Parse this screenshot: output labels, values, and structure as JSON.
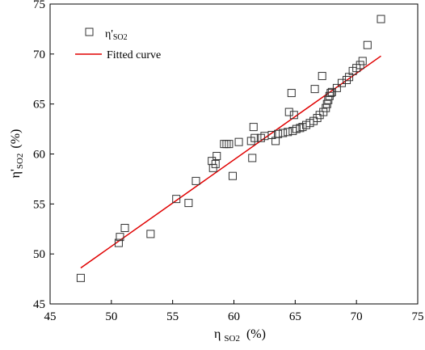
{
  "chart_data": {
    "type": "scatter",
    "title": "",
    "xlabel": {
      "main": "η",
      "sub": "SO2",
      "unit": "(%)"
    },
    "ylabel": {
      "main": "η'",
      "sub": "SO2",
      "unit": "(%)"
    },
    "xlim": [
      45,
      75
    ],
    "ylim": [
      45,
      75
    ],
    "xticks": [
      "45",
      "50",
      "55",
      "60",
      "65",
      "70",
      "75"
    ],
    "yticks": [
      "45",
      "50",
      "55",
      "60",
      "65",
      "70",
      "75"
    ],
    "grid": false,
    "legend_position": "top-left",
    "legend": {
      "scatter": {
        "main": "η'",
        "sub": "SO2"
      },
      "line": "Fitted curve"
    },
    "colors": {
      "scatter": "#333333",
      "fit": "#e00000"
    },
    "fit": {
      "x": [
        47.5,
        72.0
      ],
      "y": [
        48.6,
        69.8
      ]
    },
    "points": [
      [
        47.5,
        47.6
      ],
      [
        50.6,
        51.1
      ],
      [
        50.7,
        51.7
      ],
      [
        51.1,
        52.6
      ],
      [
        53.2,
        52.0
      ],
      [
        55.3,
        55.5
      ],
      [
        56.3,
        55.1
      ],
      [
        56.9,
        57.3
      ],
      [
        58.2,
        59.3
      ],
      [
        58.3,
        58.6
      ],
      [
        58.5,
        59.0
      ],
      [
        58.6,
        59.8
      ],
      [
        59.2,
        61.0
      ],
      [
        59.4,
        61.0
      ],
      [
        59.6,
        61.0
      ],
      [
        59.9,
        57.8
      ],
      [
        60.4,
        61.2
      ],
      [
        61.4,
        61.3
      ],
      [
        61.5,
        59.6
      ],
      [
        61.6,
        62.7
      ],
      [
        61.7,
        61.6
      ],
      [
        62.2,
        61.6
      ],
      [
        62.5,
        61.8
      ],
      [
        63.1,
        61.9
      ],
      [
        63.4,
        61.3
      ],
      [
        63.6,
        62.0
      ],
      [
        64.0,
        62.1
      ],
      [
        64.4,
        62.2
      ],
      [
        64.5,
        64.2
      ],
      [
        64.7,
        66.1
      ],
      [
        64.8,
        62.3
      ],
      [
        64.9,
        63.9
      ],
      [
        65.1,
        62.5
      ],
      [
        65.4,
        62.6
      ],
      [
        65.6,
        62.7
      ],
      [
        65.9,
        62.9
      ],
      [
        66.2,
        63.1
      ],
      [
        66.5,
        63.3
      ],
      [
        66.6,
        66.5
      ],
      [
        66.8,
        63.6
      ],
      [
        67.0,
        63.9
      ],
      [
        67.2,
        67.8
      ],
      [
        67.3,
        64.2
      ],
      [
        67.5,
        64.6
      ],
      [
        67.6,
        65.0
      ],
      [
        67.7,
        65.4
      ],
      [
        67.8,
        65.8
      ],
      [
        67.9,
        66.1
      ],
      [
        68.0,
        66.2
      ],
      [
        68.4,
        66.6
      ],
      [
        68.8,
        67.1
      ],
      [
        69.2,
        67.4
      ],
      [
        69.4,
        67.7
      ],
      [
        69.7,
        68.3
      ],
      [
        70.0,
        68.6
      ],
      [
        70.3,
        68.9
      ],
      [
        70.5,
        69.3
      ],
      [
        70.9,
        70.9
      ],
      [
        72.0,
        73.5
      ]
    ]
  }
}
